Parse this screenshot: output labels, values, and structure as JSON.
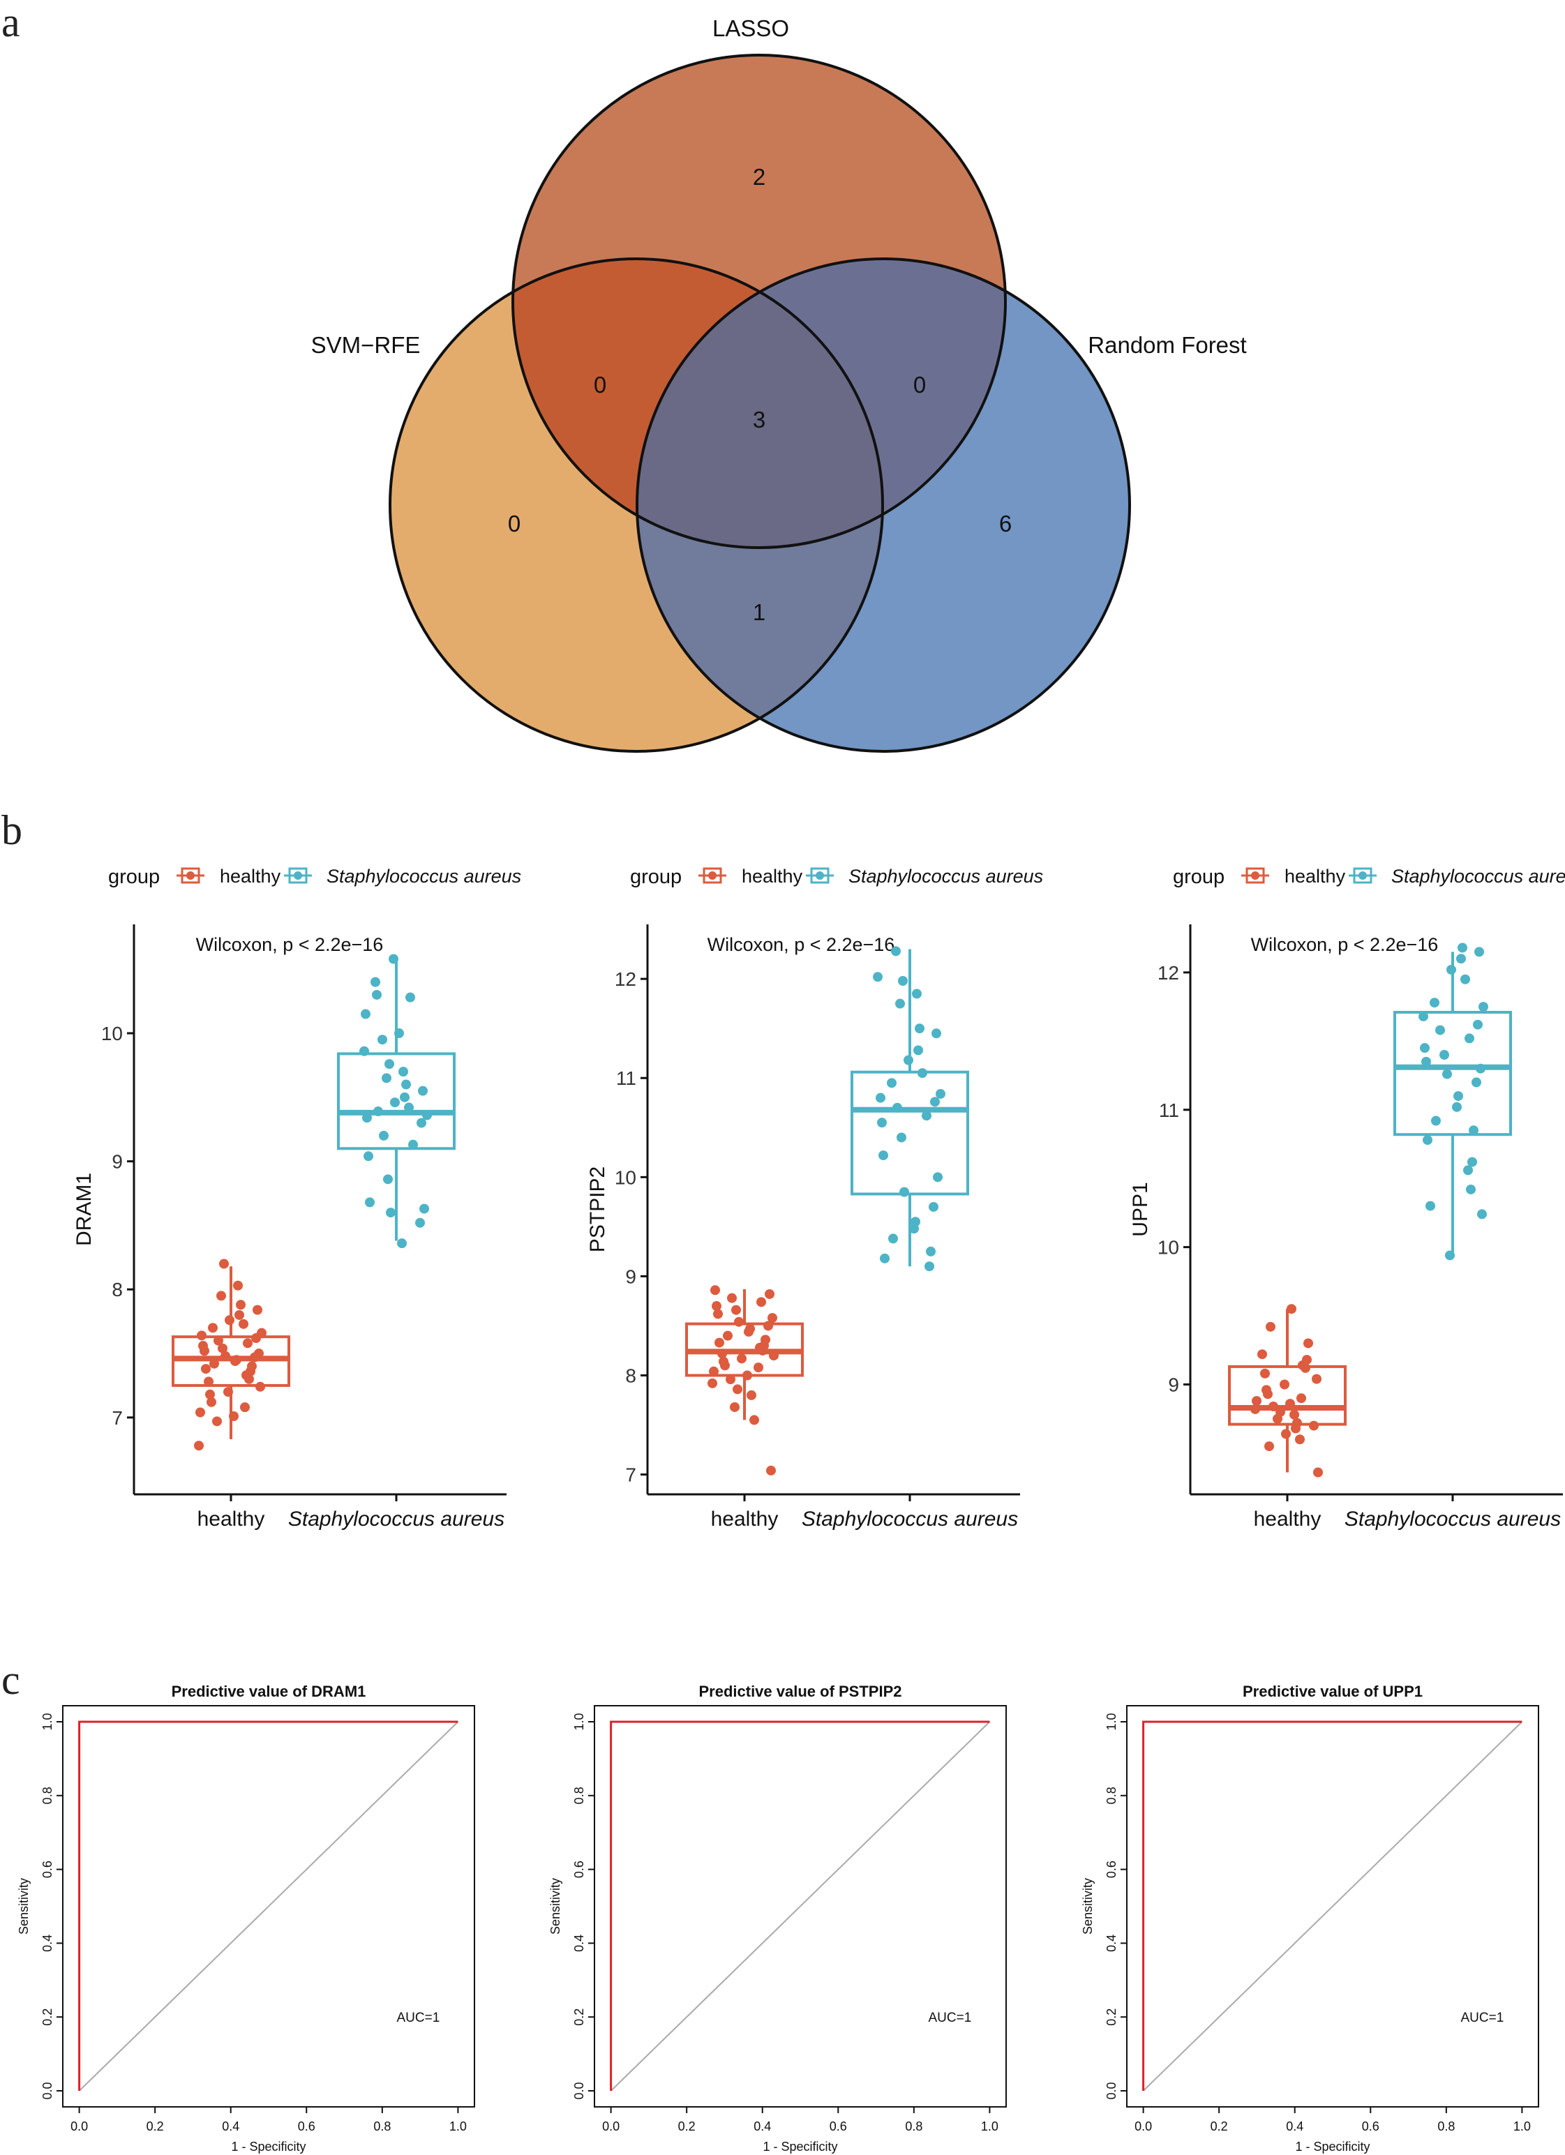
{
  "panel_labels": {
    "a": "a",
    "b": "b",
    "c": "c"
  },
  "colors": {
    "lasso": "#c87a56",
    "svm": "#e4ac6c",
    "rf": "#7396c4",
    "lasso_svm": "#c45c33",
    "lasso_rf": "#6b7093",
    "svm_rf": "#717b9b",
    "all": "#6a6a86",
    "healthy": "#dd5b3e",
    "staph": "#4db3c6",
    "roc": "#e0202a",
    "diag": "#aaaaaa"
  },
  "chart_data": [
    {
      "type": "venn",
      "sets": [
        "LASSO",
        "SVM−RFE",
        "Random Forest"
      ],
      "labels": {
        "lasso": "LASSO",
        "svm": "SVM−RFE",
        "rf": "Random Forest"
      },
      "counts": {
        "lasso_only": "2",
        "svm_only": "0",
        "rf_only": "6",
        "lasso_svm": "0",
        "lasso_rf": "0",
        "svm_rf": "1",
        "all": "3"
      }
    },
    {
      "type": "box",
      "gene": "DRAM1",
      "ylabel": "DRAM1",
      "legend_title": "group",
      "legend_items": [
        "healthy",
        "Staphylococcus aureus"
      ],
      "categories": [
        "healthy",
        "Staphylococcus aureus"
      ],
      "annotation": "Wilcoxon, p < 2.2e−16",
      "ylim": [
        6.4,
        10.85
      ],
      "yticks": [
        7,
        8,
        9,
        10
      ],
      "ytick_labels": [
        "7",
        "8",
        "9",
        "10"
      ],
      "boxes": [
        {
          "q1": 7.25,
          "median": 7.46,
          "q3": 7.63,
          "whisker_low": 6.83,
          "whisker_high": 8.18
        },
        {
          "q1": 9.1,
          "median": 9.38,
          "q3": 9.84,
          "whisker_low": 8.38,
          "whisker_high": 10.58
        }
      ],
      "points": [
        [
          6.78,
          6.97,
          7.01,
          7.04,
          7.08,
          7.12,
          7.18,
          7.2,
          7.24,
          7.28,
          7.3,
          7.33,
          7.36,
          7.38,
          7.4,
          7.42,
          7.44,
          7.45,
          7.47,
          7.48,
          7.5,
          7.52,
          7.54,
          7.56,
          7.58,
          7.6,
          7.62,
          7.64,
          7.66,
          7.7,
          7.73,
          7.76,
          7.8,
          7.84,
          7.88,
          7.95,
          8.03,
          8.2
        ],
        [
          8.36,
          8.52,
          8.6,
          8.63,
          8.68,
          8.86,
          9.04,
          9.13,
          9.2,
          9.3,
          9.34,
          9.36,
          9.39,
          9.42,
          9.46,
          9.5,
          9.55,
          9.6,
          9.65,
          9.7,
          9.76,
          9.86,
          9.95,
          10.0,
          10.15,
          10.28,
          10.3,
          10.4,
          10.58
        ]
      ]
    },
    {
      "type": "box",
      "gene": "PSTPIP2",
      "ylabel": "PSTPIP2",
      "legend_title": "group",
      "legend_items": [
        "healthy",
        "Staphylococcus aureus"
      ],
      "categories": [
        "healthy",
        "Staphylococcus aureus"
      ],
      "annotation": "Wilcoxon, p < 2.2e−16",
      "ylim": [
        6.8,
        12.55
      ],
      "yticks": [
        7,
        8,
        9,
        10,
        11,
        12
      ],
      "ytick_labels": [
        "7",
        "8",
        "9",
        "10",
        "11",
        "12"
      ],
      "boxes": [
        {
          "q1": 8.0,
          "median": 8.24,
          "q3": 8.52,
          "whisker_low": 7.55,
          "whisker_high": 8.87
        },
        {
          "q1": 9.83,
          "median": 10.68,
          "q3": 11.06,
          "whisker_low": 9.1,
          "whisker_high": 12.3
        }
      ],
      "points": [
        [
          7.04,
          7.55,
          7.68,
          7.8,
          7.86,
          7.92,
          7.96,
          8.0,
          8.04,
          8.08,
          8.1,
          8.14,
          8.17,
          8.2,
          8.22,
          8.25,
          8.28,
          8.3,
          8.33,
          8.36,
          8.4,
          8.44,
          8.47,
          8.5,
          8.54,
          8.58,
          8.62,
          8.66,
          8.7,
          8.74,
          8.78,
          8.82,
          8.86
        ],
        [
          9.1,
          9.18,
          9.25,
          9.38,
          9.48,
          9.55,
          9.7,
          9.85,
          10.0,
          10.22,
          10.4,
          10.55,
          10.62,
          10.7,
          10.76,
          10.8,
          10.84,
          10.95,
          11.05,
          11.18,
          11.28,
          11.45,
          11.5,
          11.75,
          11.85,
          11.98,
          12.02,
          12.28
        ]
      ]
    },
    {
      "type": "box",
      "gene": "UPP1",
      "ylabel": "UPP1",
      "legend_title": "group",
      "legend_items": [
        "healthy",
        "Staphylococcus aureus"
      ],
      "categories": [
        "healthy",
        "Staphylococcus aureus"
      ],
      "annotation": "Wilcoxon, p < 2.2e−16",
      "ylim": [
        8.2,
        12.35
      ],
      "yticks": [
        9,
        10,
        11,
        12
      ],
      "ytick_labels": [
        "9",
        "10",
        "11",
        "12"
      ],
      "boxes": [
        {
          "q1": 8.71,
          "median": 8.83,
          "q3": 9.13,
          "whisker_low": 8.36,
          "whisker_high": 9.55
        },
        {
          "q1": 10.82,
          "median": 11.31,
          "q3": 11.71,
          "whisker_low": 9.96,
          "whisker_high": 12.15
        }
      ],
      "points": [
        [
          8.36,
          8.55,
          8.6,
          8.64,
          8.68,
          8.7,
          8.72,
          8.75,
          8.78,
          8.8,
          8.82,
          8.84,
          8.86,
          8.88,
          8.9,
          8.93,
          8.96,
          9.0,
          9.04,
          9.08,
          9.12,
          9.14,
          9.18,
          9.22,
          9.3,
          9.42,
          9.55
        ],
        [
          9.94,
          10.24,
          10.3,
          10.42,
          10.56,
          10.62,
          10.78,
          10.85,
          10.92,
          11.02,
          11.1,
          11.2,
          11.26,
          11.3,
          11.35,
          11.4,
          11.45,
          11.52,
          11.58,
          11.62,
          11.68,
          11.75,
          11.78,
          11.95,
          12.02,
          12.1,
          12.15,
          12.18
        ]
      ]
    },
    {
      "type": "line",
      "subtype": "roc",
      "title": "Predictive value of DRAM1",
      "xlabel": "1 - Specificity",
      "ylabel": "Sensitivity",
      "auc_label": "AUC=1",
      "xlim": [
        0,
        1
      ],
      "ylim": [
        0,
        1
      ],
      "ticks": [
        0,
        0.2,
        0.4,
        0.6,
        0.8,
        1
      ],
      "tick_labels": [
        "0.0",
        "0.2",
        "0.4",
        "0.6",
        "0.8",
        "1.0"
      ],
      "x": [
        0,
        0,
        1
      ],
      "y": [
        0,
        1,
        1
      ]
    },
    {
      "type": "line",
      "subtype": "roc",
      "title": "Predictive value of PSTPIP2",
      "xlabel": "1 - Specificity",
      "ylabel": "Sensitivity",
      "auc_label": "AUC=1",
      "xlim": [
        0,
        1
      ],
      "ylim": [
        0,
        1
      ],
      "ticks": [
        0,
        0.2,
        0.4,
        0.6,
        0.8,
        1
      ],
      "tick_labels": [
        "0.0",
        "0.2",
        "0.4",
        "0.6",
        "0.8",
        "1.0"
      ],
      "x": [
        0,
        0,
        1
      ],
      "y": [
        0,
        1,
        1
      ]
    },
    {
      "type": "line",
      "subtype": "roc",
      "title": "Predictive value of UPP1",
      "xlabel": "1 - Specificity",
      "ylabel": "Sensitivity",
      "auc_label": "AUC=1",
      "xlim": [
        0,
        1
      ],
      "ylim": [
        0,
        1
      ],
      "ticks": [
        0,
        0.2,
        0.4,
        0.6,
        0.8,
        1
      ],
      "tick_labels": [
        "0.0",
        "0.2",
        "0.4",
        "0.6",
        "0.8",
        "1.0"
      ],
      "x": [
        0,
        0,
        1
      ],
      "y": [
        0,
        1,
        1
      ]
    }
  ]
}
